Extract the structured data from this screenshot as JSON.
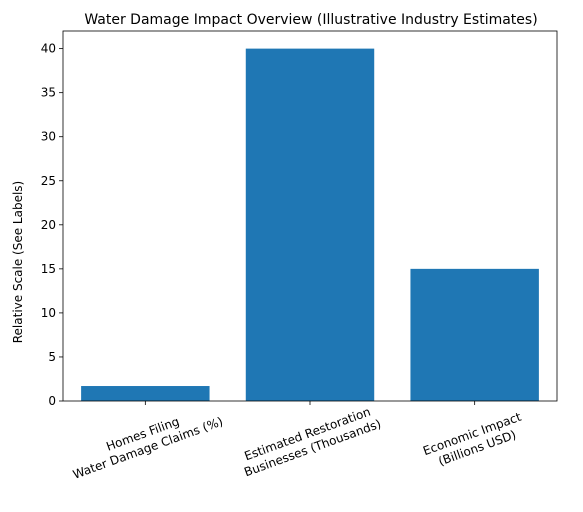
{
  "chart_data": {
    "type": "bar",
    "title": "Water Damage Impact Overview (Illustrative Industry Estimates)",
    "xlabel": "",
    "ylabel": "Relative Scale (See Labels)",
    "categories": [
      [
        "Homes Filing",
        "Water Damage Claims (%)"
      ],
      [
        "Estimated Restoration",
        "Businesses (Thousands)"
      ],
      [
        "Economic Impact",
        "(Billions USD)"
      ]
    ],
    "values": [
      1.7,
      40,
      15
    ],
    "ylim": [
      0,
      42
    ],
    "yticks": [
      0,
      5,
      10,
      15,
      20,
      25,
      30,
      35,
      40
    ],
    "bar_color": "#1f77b4",
    "grid": false,
    "legend": "none"
  }
}
